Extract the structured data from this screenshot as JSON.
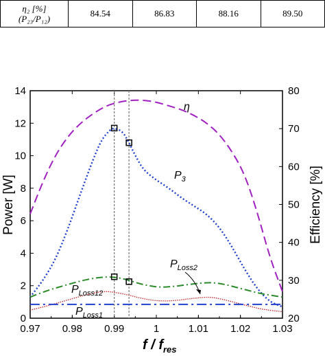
{
  "table": {
    "header_line1": "η₂ [%]",
    "header_line2": "(P₂₃/P₁₂)",
    "values": [
      "84.54",
      "86.83",
      "88.16",
      "89.50"
    ]
  },
  "chart_data": {
    "type": "line",
    "xlabel": "f / fres",
    "ylabel_left": "Power [W]",
    "ylabel_right": "Efficiency [%]",
    "xlim": [
      0.97,
      1.03
    ],
    "ylim_left": [
      0,
      14
    ],
    "ylim_right": [
      20,
      80
    ],
    "x_ticks": [
      "0.97",
      "0.98",
      "0.99",
      "1",
      "1.01",
      "1.02",
      "1.03"
    ],
    "y_ticks_left": [
      "0",
      "2",
      "4",
      "6",
      "8",
      "10",
      "12",
      "14"
    ],
    "y_ticks_right": [
      "20",
      "30",
      "40",
      "50",
      "60",
      "70",
      "80"
    ],
    "grid": false,
    "series": [
      {
        "name": "η",
        "axis": "right",
        "color": "#a020c0",
        "style": "long-dash",
        "x": [
          0.97,
          0.973,
          0.976,
          0.979,
          0.982,
          0.985,
          0.988,
          0.991,
          0.994,
          0.997,
          1.0,
          1.003,
          1.006,
          1.009,
          1.012,
          1.015,
          1.018,
          1.021,
          1.024,
          1.027,
          1.03
        ],
        "y": [
          47.5,
          56,
          63,
          68,
          71.5,
          74,
          76,
          77,
          77.5,
          77.5,
          77,
          76,
          75,
          73.5,
          71.5,
          68.5,
          64,
          58,
          48,
          36,
          27
        ]
      },
      {
        "name": "P3",
        "axis": "left",
        "color": "#1e3fd0",
        "style": "dotted",
        "x": [
          0.97,
          0.973,
          0.976,
          0.979,
          0.982,
          0.985,
          0.987,
          0.989,
          0.99,
          0.992,
          0.9935,
          0.995,
          0.997,
          1.0,
          1.003,
          1.006,
          1.009,
          1.012,
          1.015,
          1.018,
          1.021,
          1.024,
          1.027,
          1.03
        ],
        "y": [
          1.3,
          2.3,
          3.6,
          5.5,
          7.7,
          9.8,
          11.0,
          11.6,
          11.7,
          11.5,
          10.8,
          10.0,
          9.1,
          8.5,
          8.0,
          7.4,
          6.9,
          6.4,
          5.6,
          4.4,
          3.0,
          1.8,
          1.0,
          0.7
        ]
      },
      {
        "name": "PLoss12",
        "axis": "left",
        "color": "#2a8a2a",
        "style": "dash-dot",
        "x": [
          0.97,
          0.974,
          0.978,
          0.982,
          0.986,
          0.989,
          0.992,
          0.995,
          0.998,
          1.001,
          1.004,
          1.007,
          1.01,
          1.013,
          1.016,
          1.019,
          1.022,
          1.025,
          1.03
        ],
        "y": [
          1.3,
          1.7,
          2.0,
          2.3,
          2.5,
          2.55,
          2.45,
          2.2,
          2.0,
          1.9,
          1.95,
          2.05,
          2.15,
          2.2,
          2.1,
          1.9,
          1.7,
          1.5,
          1.3
        ]
      },
      {
        "name": "PLoss2",
        "axis": "left",
        "color": "#c02020",
        "style": "fine-dot",
        "x": [
          0.97,
          0.974,
          0.978,
          0.982,
          0.986,
          0.988,
          0.99,
          0.993,
          0.996,
          0.999,
          1.002,
          1.005,
          1.008,
          1.011,
          1.013,
          1.016,
          1.019,
          1.022,
          1.025,
          1.03
        ],
        "y": [
          0.5,
          0.75,
          1.05,
          1.35,
          1.6,
          1.65,
          1.6,
          1.45,
          1.25,
          1.1,
          1.05,
          1.1,
          1.2,
          1.28,
          1.3,
          1.15,
          0.95,
          0.75,
          0.55,
          0.4
        ]
      },
      {
        "name": "PLoss1",
        "axis": "left",
        "color": "#2040d0",
        "style": "dash-dot-long",
        "x": [
          0.97,
          1.03
        ],
        "y": [
          0.85,
          0.85
        ]
      }
    ],
    "markers": [
      {
        "x": 0.99,
        "y": 11.7
      },
      {
        "x": 0.9935,
        "y": 10.8
      },
      {
        "x": 0.99,
        "y": 2.55
      },
      {
        "x": 0.9935,
        "y": 2.25
      }
    ],
    "vlines": [
      0.99,
      0.9935
    ],
    "annotations": {
      "eta": "η",
      "p3": "P",
      "p3_sub": "3",
      "ploss12": "P",
      "ploss12_sub": "Loss12",
      "ploss2": "P",
      "ploss2_sub": "Loss2",
      "ploss1": "P",
      "ploss1_sub": "Loss1"
    },
    "xlabel_main": "f / f",
    "xlabel_sub": "res",
    "ylabel_left_text": "Power [W]",
    "ylabel_right_text": "Efficiency [%]"
  }
}
